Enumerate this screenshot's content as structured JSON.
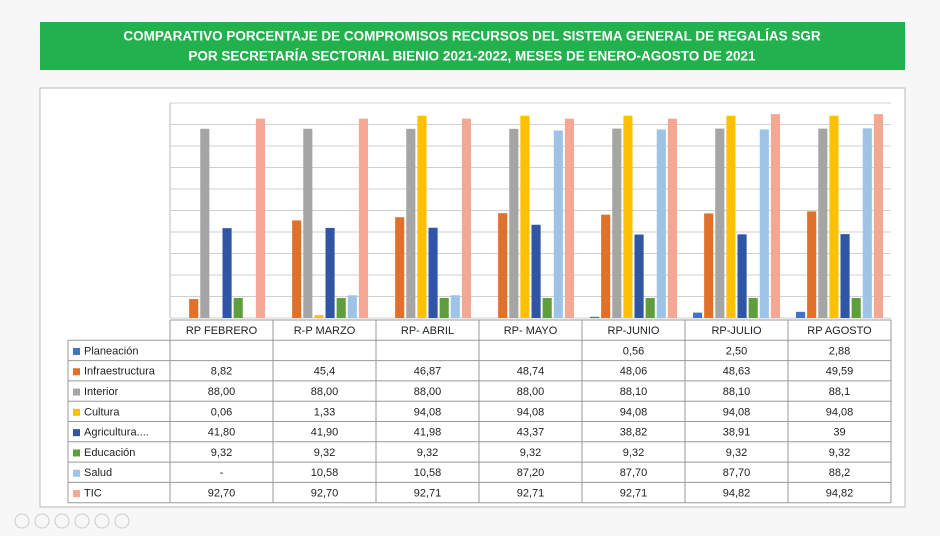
{
  "chart_data": {
    "type": "bar",
    "title": "COMPARATIVO  PORCENTAJE DE COMPROMISOS  RECURSOS DEL SISTEMA GENERAL DE REGALÍAS SGR",
    "subtitle": "POR SECRETARÍA SECTORIAL BIENIO 2021-2022,  MESES DE ENERO-AGOSTO DE 2021",
    "categories": [
      "RP FEBRERO",
      "R-P MARZO",
      "RP- ABRIL",
      "RP- MAYO",
      "RP-JUNIO",
      "RP-JULIO",
      "RP AGOSTO"
    ],
    "ylim": [
      0,
      100
    ],
    "yticks": [
      0,
      10,
      20,
      30,
      40,
      50,
      60,
      70,
      80,
      90,
      100
    ],
    "grid": true,
    "series": [
      {
        "name": "Planeación",
        "color": "#4472c4",
        "values": [
          null,
          null,
          null,
          null,
          0.56,
          2.5,
          2.88
        ],
        "value_labels": [
          null,
          null,
          null,
          null,
          "0,56",
          "2,50",
          "2,88"
        ]
      },
      {
        "name": "Infraestructura",
        "color": "#e0702a",
        "values": [
          8.82,
          45.4,
          46.87,
          48.74,
          48.06,
          48.63,
          49.59
        ],
        "value_labels": [
          "8,82",
          "45,4",
          "46,87",
          "48,74",
          "48,06",
          "48,63",
          "49,59"
        ]
      },
      {
        "name": "Interior",
        "color": "#a5a5a5",
        "values": [
          88.0,
          88.0,
          88.0,
          88.0,
          88.1,
          88.1,
          88.1
        ],
        "value_labels": [
          "88,00",
          "88,00",
          "88,00",
          "88,00",
          "88,10",
          "88,10",
          "88,1"
        ]
      },
      {
        "name": "Cultura",
        "color": "#ffc000",
        "values": [
          0.06,
          1.33,
          94.08,
          94.08,
          94.08,
          94.08,
          94.08
        ],
        "value_labels": [
          "0,06",
          "1,33",
          "94,08",
          "94,08",
          "94,08",
          "94,08",
          "94,08"
        ]
      },
      {
        "name": "Agricultura....",
        "color": "#2f55a4",
        "values": [
          41.8,
          41.9,
          41.98,
          43.37,
          38.82,
          38.91,
          39
        ],
        "value_labels": [
          "41,80",
          "41,90",
          "41,98",
          "43,37",
          "38,82",
          "38,91",
          "39"
        ]
      },
      {
        "name": "Educación",
        "color": "#5e9e3c",
        "values": [
          9.32,
          9.32,
          9.32,
          9.32,
          9.32,
          9.32,
          9.32
        ],
        "value_labels": [
          "9,32",
          "9,32",
          "9,32",
          "9,32",
          "9,32",
          "9,32",
          "9,32"
        ]
      },
      {
        "name": "Salud",
        "color": "#9dc3e6",
        "values": [
          null,
          10.58,
          10.58,
          87.2,
          87.7,
          87.7,
          88.2
        ],
        "value_labels": [
          "-",
          "10,58",
          "10,58",
          "87,20",
          "87,70",
          "87,70",
          "88,2"
        ]
      },
      {
        "name": "TIC",
        "color": "#f4a894",
        "values": [
          92.7,
          92.7,
          92.71,
          92.71,
          92.71,
          94.82,
          94.82
        ],
        "value_labels": [
          "92,70",
          "92,70",
          "92,71",
          "92,71",
          "92,71",
          "94,82",
          "94,82"
        ]
      }
    ]
  }
}
